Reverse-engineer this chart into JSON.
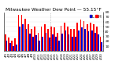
{
  "title": "Milwaukee Weather Dew Point — 55.15°F",
  "title_fontsize": 4.2,
  "bar_width": 0.42,
  "background_color": "#ffffff",
  "high_color": "#ff0000",
  "low_color": "#0000cc",
  "ylim": [
    0,
    80
  ],
  "yticks": [
    10,
    20,
    30,
    40,
    50,
    60,
    70,
    80
  ],
  "ytick_fontsize": 3.2,
  "xtick_fontsize": 2.8,
  "legend_fontsize": 3.5,
  "dates": [
    "4/1",
    "4/2",
    "4/3",
    "4/4",
    "4/5",
    "4/6",
    "4/7",
    "4/8",
    "4/9",
    "4/10",
    "4/11",
    "4/12",
    "4/13",
    "4/14",
    "4/15",
    "4/16",
    "4/17",
    "4/18",
    "4/19",
    "4/20",
    "4/21",
    "4/22",
    "4/23",
    "4/24",
    "4/25",
    "4/26",
    "4/27",
    "4/28",
    "4/29",
    "4/30"
  ],
  "high_values": [
    34,
    28,
    22,
    26,
    75,
    75,
    66,
    55,
    46,
    50,
    38,
    50,
    56,
    45,
    50,
    48,
    38,
    52,
    58,
    50,
    46,
    46,
    58,
    65,
    62,
    56,
    58,
    55,
    50,
    30
  ],
  "low_values": [
    22,
    16,
    10,
    14,
    50,
    55,
    46,
    36,
    30,
    32,
    22,
    30,
    38,
    28,
    34,
    30,
    22,
    36,
    42,
    34,
    30,
    30,
    42,
    48,
    46,
    40,
    42,
    38,
    35,
    18
  ],
  "dotted_line_x": 13.5,
  "grid_color": "#cccccc"
}
